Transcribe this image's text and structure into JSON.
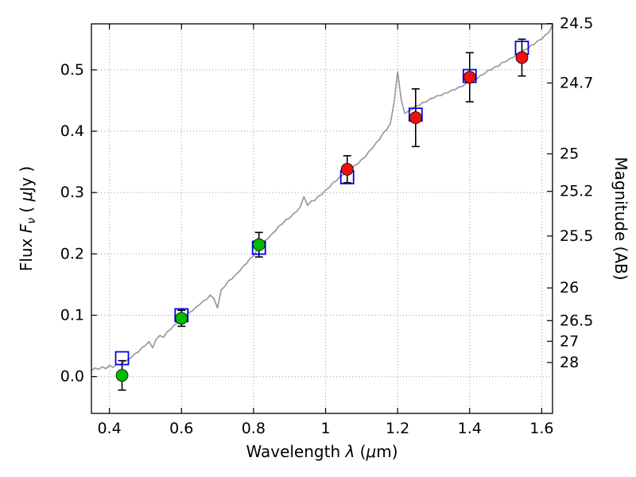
{
  "figure": {
    "background": "#ffffff"
  },
  "chart_data": {
    "type": "line+scatter",
    "title": "",
    "xlabel_segments": [
      {
        "t": "Wavelength  ",
        "i": false
      },
      {
        "t": "λ",
        "i": true
      },
      {
        "t": " (",
        "i": false
      },
      {
        "t": "μ",
        "i": true
      },
      {
        "t": "m)",
        "i": false
      }
    ],
    "ylabel_left_segments": [
      {
        "t": "Flux  ",
        "i": false
      },
      {
        "t": "F",
        "i": true
      },
      {
        "t": "ν",
        "i": true,
        "sub": true
      },
      {
        "t": "  ( ",
        "i": false
      },
      {
        "t": "μ",
        "i": true
      },
      {
        "t": "Jy )",
        "i": false
      }
    ],
    "ylabel_right": "Magnitude (AB)",
    "xlim": [
      0.35,
      1.63
    ],
    "ylim": [
      -0.06,
      0.575
    ],
    "grid": {
      "show": true,
      "style": "dotted",
      "color": "#999999"
    },
    "legend": "none",
    "x_ticks": {
      "values": [
        0.4,
        0.6,
        0.8,
        1.0,
        1.2,
        1.4,
        1.6
      ],
      "labels": [
        "0.4",
        "0.6",
        "0.8",
        "1",
        "1.2",
        "1.4",
        "1.6"
      ]
    },
    "y_ticks_left": {
      "values": [
        0.0,
        0.1,
        0.2,
        0.3,
        0.4,
        0.5
      ],
      "labels": [
        "0.0",
        "0.1",
        "0.2",
        "0.3",
        "0.4",
        "0.5"
      ]
    },
    "y_ticks_right": {
      "ab_zeropoint": 23.9,
      "mag_values": [
        24.5,
        24.7,
        25.0,
        25.2,
        25.5,
        26.0,
        26.5,
        27.0,
        28.0
      ],
      "labels": [
        "24.5",
        "24.7",
        "25",
        "25.2",
        "25.5",
        "26",
        "26.5",
        "27",
        "28"
      ]
    },
    "colors": {
      "spectrum": "#9a9a9a",
      "detection_green": "#00bb00",
      "detection_red": "#ee1111",
      "model_blue": "#0000ee",
      "errorbar": "#000000",
      "frame": "#000000"
    },
    "spectrum": {
      "x_start": 0.35,
      "x_step": 0.01,
      "flux": [
        0.01,
        0.014,
        0.012,
        0.016,
        0.013,
        0.018,
        0.015,
        0.02,
        0.019,
        0.024,
        0.027,
        0.031,
        0.037,
        0.04,
        0.047,
        0.051,
        0.057,
        0.047,
        0.061,
        0.067,
        0.064,
        0.073,
        0.077,
        0.084,
        0.088,
        0.095,
        0.097,
        0.104,
        0.107,
        0.113,
        0.117,
        0.123,
        0.126,
        0.133,
        0.127,
        0.112,
        0.141,
        0.147,
        0.156,
        0.159,
        0.166,
        0.171,
        0.179,
        0.184,
        0.192,
        0.197,
        0.206,
        0.212,
        0.221,
        0.225,
        0.232,
        0.237,
        0.245,
        0.249,
        0.256,
        0.258,
        0.265,
        0.269,
        0.277,
        0.293,
        0.279,
        0.286,
        0.287,
        0.294,
        0.297,
        0.304,
        0.308,
        0.316,
        0.319,
        0.326,
        0.329,
        0.335,
        0.337,
        0.344,
        0.347,
        0.354,
        0.358,
        0.367,
        0.372,
        0.381,
        0.387,
        0.397,
        0.403,
        0.413,
        0.446,
        0.497,
        0.451,
        0.429,
        0.433,
        0.435,
        0.441,
        0.442,
        0.447,
        0.448,
        0.453,
        0.454,
        0.458,
        0.458,
        0.462,
        0.463,
        0.467,
        0.468,
        0.472,
        0.473,
        0.478,
        0.479,
        0.484,
        0.485,
        0.491,
        0.493,
        0.499,
        0.5,
        0.505,
        0.506,
        0.512,
        0.513,
        0.518,
        0.52,
        0.525,
        0.526,
        0.532,
        0.534,
        0.54,
        0.542,
        0.548,
        0.55,
        0.557,
        0.561,
        0.573
      ]
    },
    "photometry": [
      {
        "x": 0.435,
        "flux": 0.002,
        "err": 0.024,
        "color": "green"
      },
      {
        "x": 0.6,
        "flux": 0.095,
        "err": 0.013,
        "color": "green"
      },
      {
        "x": 0.815,
        "flux": 0.215,
        "err": 0.02,
        "color": "green"
      },
      {
        "x": 1.06,
        "flux": 0.338,
        "err": 0.022,
        "color": "red"
      },
      {
        "x": 1.25,
        "flux": 0.422,
        "err": 0.047,
        "color": "red"
      },
      {
        "x": 1.4,
        "flux": 0.488,
        "err": 0.04,
        "color": "red"
      },
      {
        "x": 1.545,
        "flux": 0.52,
        "err": 0.03,
        "color": "red"
      }
    ],
    "model_photometry": [
      {
        "x": 0.435,
        "flux": 0.03
      },
      {
        "x": 0.6,
        "flux": 0.1
      },
      {
        "x": 0.815,
        "flux": 0.21
      },
      {
        "x": 1.06,
        "flux": 0.325
      },
      {
        "x": 1.25,
        "flux": 0.427
      },
      {
        "x": 1.4,
        "flux": 0.49
      },
      {
        "x": 1.545,
        "flux": 0.536
      }
    ]
  }
}
